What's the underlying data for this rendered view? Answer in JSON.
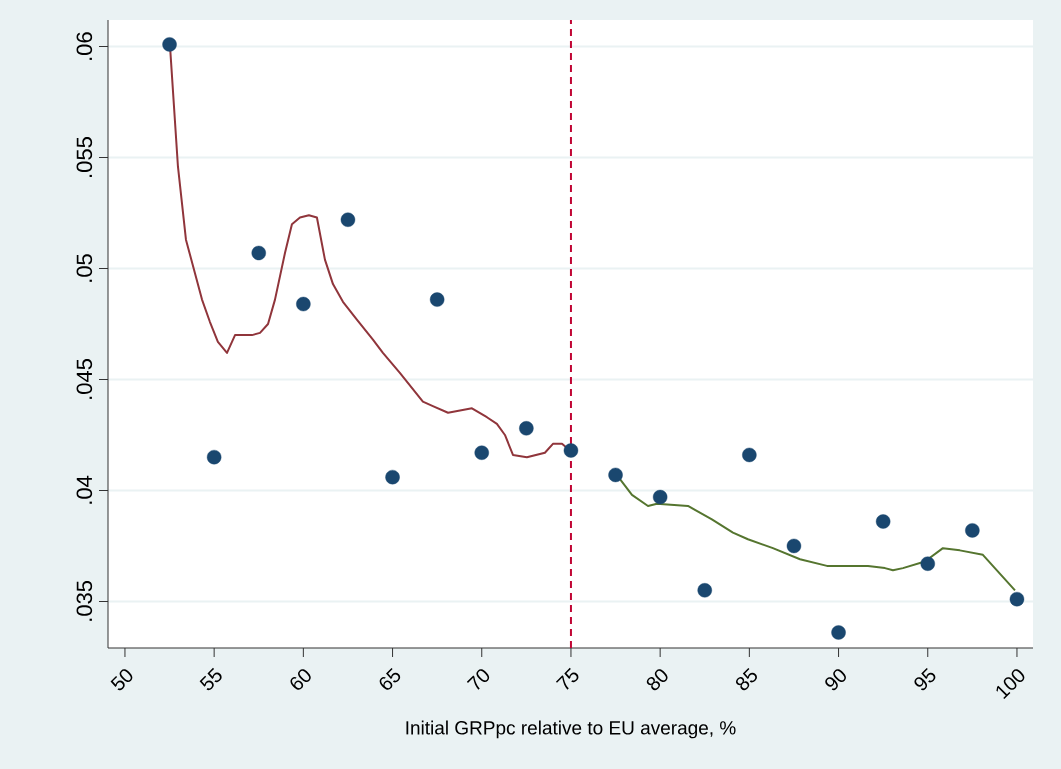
{
  "chart_data": {
    "type": "scatter",
    "xlabel": "Initial GRPpc relative to EU average, %",
    "xlim": [
      49.05,
      100.9
    ],
    "ylim": [
      0.0329,
      0.0612
    ],
    "xticks": [
      50,
      55,
      60,
      65,
      70,
      75,
      80,
      85,
      90,
      95,
      100
    ],
    "yticks": [
      {
        "value": 0.035,
        "label": ".035"
      },
      {
        "value": 0.04,
        "label": ".04"
      },
      {
        "value": 0.045,
        "label": ".045"
      },
      {
        "value": 0.05,
        "label": ".05"
      },
      {
        "value": 0.055,
        "label": ".055"
      },
      {
        "value": 0.06,
        "label": ".06"
      }
    ],
    "grid": "y",
    "marker": "circle",
    "series": [
      {
        "color": "#1a476f",
        "x": [
          52.5,
          55,
          57.5,
          60,
          62.5,
          65,
          67.5,
          70,
          72.5,
          75,
          77.5,
          80,
          82.5,
          85,
          87.5,
          90,
          92.5,
          95,
          97.5,
          100
        ],
        "values": [
          0.0601,
          0.0415,
          0.0507,
          0.0484,
          0.0522,
          0.0406,
          0.0486,
          0.0417,
          0.0428,
          0.0418,
          0.0407,
          0.0397,
          0.0355,
          0.0416,
          0.0375,
          0.0336,
          0.0386,
          0.0367,
          0.0382,
          0.0351
        ]
      },
      {
        "type": "line",
        "marker": "none",
        "color": "#90353b",
        "x": [
          52.52,
          52.97,
          53.42,
          54.32,
          54.76,
          55.21,
          55.72,
          56.17,
          57.12,
          57.57,
          58.02,
          58.41,
          58.97,
          59.36,
          59.81,
          60.31,
          60.76,
          61.21,
          61.66,
          62.22,
          63.0,
          63.9,
          64.46,
          65.41,
          66.7,
          67.26,
          68.11,
          69.45,
          70.29,
          70.85,
          71.3,
          71.75,
          72.53,
          73.54,
          73.99,
          74.5,
          74.94
        ],
        "values": [
          0.0601,
          0.0546,
          0.0513,
          0.0486,
          0.0476,
          0.0467,
          0.0462,
          0.047,
          0.047,
          0.0471,
          0.0475,
          0.0486,
          0.0507,
          0.052,
          0.0523,
          0.0524,
          0.0523,
          0.0504,
          0.0493,
          0.0485,
          0.0477,
          0.0468,
          0.0462,
          0.0453,
          0.044,
          0.0438,
          0.0435,
          0.0437,
          0.0433,
          0.043,
          0.0425,
          0.0416,
          0.0415,
          0.0417,
          0.0421,
          0.0421,
          0.0418
        ]
      },
      {
        "type": "line",
        "marker": "none",
        "color": "#55752f",
        "x": [
          77.47,
          78.42,
          79.32,
          79.82,
          81.56,
          82.9,
          84.08,
          84.92,
          86.32,
          87.84,
          89.35,
          90.08,
          91.65,
          92.6,
          93.05,
          93.61,
          94.84,
          95.85,
          96.8,
          98.09,
          99.89
        ],
        "values": [
          0.0408,
          0.0398,
          0.0393,
          0.0394,
          0.0393,
          0.0387,
          0.0381,
          0.0378,
          0.0374,
          0.0369,
          0.0366,
          0.0366,
          0.0366,
          0.0365,
          0.0364,
          0.0365,
          0.0368,
          0.0374,
          0.0373,
          0.0371,
          0.0355
        ]
      }
    ],
    "ref_lines": [
      {
        "axis": "x",
        "value": 75,
        "color": "#c10534",
        "line_style": "dashed"
      }
    ]
  }
}
